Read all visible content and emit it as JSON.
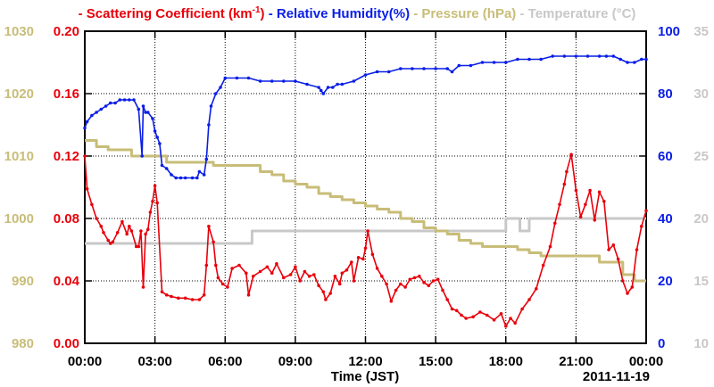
{
  "chart_data": {
    "type": "line",
    "title": "",
    "date_label": "2011-11-19",
    "xlabel": "Time (JST)",
    "x_ticks": [
      "00:00",
      "03:00",
      "06:00",
      "09:00",
      "12:00",
      "15:00",
      "18:00",
      "21:00",
      "00:00"
    ],
    "xlim_hours": [
      0,
      24
    ],
    "legend": [
      {
        "name": "Scattering Coefficient (km",
        "sup": "-1",
        "tail": ")",
        "color": "#e8000b"
      },
      {
        "name": "Relative Humidity(%)",
        "color": "#0a1ee6"
      },
      {
        "name": "Pressure (hPa)",
        "color": "#c8bd78"
      },
      {
        "name": "Temperature (°C)",
        "color": "#c8c8c8"
      }
    ],
    "axes": {
      "scattering": {
        "side": "left-inner",
        "range": [
          0,
          0.2
        ],
        "ticks": [
          "0.00",
          "0.04",
          "0.08",
          "0.12",
          "0.16",
          "0.20"
        ],
        "color": "#e8000b"
      },
      "pressure": {
        "side": "left-outer",
        "range": [
          980,
          1030
        ],
        "ticks": [
          "980",
          "990",
          "1000",
          "1010",
          "1020",
          "1030"
        ],
        "color": "#c8bd78"
      },
      "humidity": {
        "side": "right-inner",
        "range": [
          0,
          100
        ],
        "ticks": [
          "0",
          "20",
          "40",
          "60",
          "80",
          "100"
        ],
        "color": "#0a1ee6"
      },
      "temperature": {
        "side": "right-outer",
        "range": [
          10,
          35
        ],
        "ticks": [
          "10",
          "15",
          "20",
          "25",
          "30",
          "35"
        ],
        "color": "#c8c8c8"
      }
    },
    "grid": true,
    "series": [
      {
        "name": "Scattering Coefficient",
        "axis": "scattering",
        "x": [
          0,
          0.1,
          0.3,
          0.5,
          0.7,
          0.8,
          1.0,
          1.1,
          1.2,
          1.4,
          1.6,
          1.8,
          1.9,
          2.0,
          2.2,
          2.3,
          2.4,
          2.5,
          2.6,
          2.7,
          2.8,
          2.9,
          3.0,
          3.1,
          3.3,
          3.5,
          3.7,
          4.0,
          4.3,
          4.6,
          4.9,
          5.1,
          5.2,
          5.3,
          5.5,
          5.6,
          5.7,
          5.9,
          6.1,
          6.3,
          6.6,
          6.9,
          7.0,
          7.2,
          7.5,
          7.8,
          8.0,
          8.2,
          8.5,
          8.8,
          9.0,
          9.2,
          9.4,
          9.6,
          9.8,
          10.0,
          10.2,
          10.3,
          10.5,
          10.7,
          10.9,
          11.0,
          11.2,
          11.4,
          11.5,
          11.7,
          11.9,
          12.0,
          12.1,
          12.3,
          12.5,
          12.7,
          12.9,
          13.1,
          13.3,
          13.5,
          13.7,
          13.9,
          14.1,
          14.3,
          14.5,
          14.7,
          14.9,
          15.1,
          15.3,
          15.5,
          15.7,
          15.9,
          16.1,
          16.3,
          16.6,
          16.9,
          17.2,
          17.5,
          17.8,
          18.0,
          18.2,
          18.4,
          18.7,
          19.0,
          19.3,
          19.6,
          19.9,
          20.1,
          20.3,
          20.5,
          20.6,
          20.8,
          21.0,
          21.2,
          21.4,
          21.6,
          21.8,
          22.0,
          22.2,
          22.4,
          22.6,
          22.8,
          23.0,
          23.2,
          23.4,
          23.6,
          23.8,
          24.0
        ],
        "y": [
          0.12,
          0.099,
          0.089,
          0.08,
          0.075,
          0.071,
          0.066,
          0.064,
          0.065,
          0.071,
          0.078,
          0.07,
          0.075,
          0.072,
          0.062,
          0.062,
          0.072,
          0.036,
          0.07,
          0.073,
          0.084,
          0.091,
          0.101,
          0.09,
          0.033,
          0.031,
          0.03,
          0.029,
          0.029,
          0.028,
          0.028,
          0.031,
          0.05,
          0.075,
          0.065,
          0.05,
          0.042,
          0.038,
          0.036,
          0.048,
          0.05,
          0.045,
          0.031,
          0.043,
          0.046,
          0.049,
          0.045,
          0.051,
          0.042,
          0.044,
          0.049,
          0.04,
          0.046,
          0.043,
          0.044,
          0.037,
          0.033,
          0.028,
          0.032,
          0.043,
          0.038,
          0.045,
          0.047,
          0.052,
          0.04,
          0.055,
          0.054,
          0.061,
          0.072,
          0.057,
          0.048,
          0.043,
          0.038,
          0.027,
          0.034,
          0.038,
          0.036,
          0.041,
          0.042,
          0.043,
          0.039,
          0.037,
          0.04,
          0.041,
          0.034,
          0.028,
          0.022,
          0.021,
          0.018,
          0.016,
          0.017,
          0.02,
          0.018,
          0.015,
          0.019,
          0.011,
          0.016,
          0.013,
          0.022,
          0.028,
          0.035,
          0.05,
          0.062,
          0.077,
          0.089,
          0.102,
          0.11,
          0.121,
          0.098,
          0.081,
          0.089,
          0.098,
          0.079,
          0.097,
          0.091,
          0.06,
          0.063,
          0.054,
          0.04,
          0.032,
          0.036,
          0.06,
          0.075,
          0.085
        ]
      },
      {
        "name": "Relative Humidity",
        "axis": "humidity",
        "x": [
          0,
          0.1,
          0.3,
          0.5,
          0.7,
          0.9,
          1.1,
          1.3,
          1.5,
          1.7,
          1.9,
          2.1,
          2.3,
          2.45,
          2.5,
          2.6,
          2.7,
          2.9,
          3.0,
          3.1,
          3.2,
          3.3,
          3.5,
          3.7,
          3.9,
          4.1,
          4.3,
          4.6,
          4.8,
          4.9,
          5.1,
          5.2,
          5.3,
          5.4,
          5.6,
          5.8,
          6.0,
          6.5,
          7.0,
          7.5,
          8.0,
          8.5,
          9.0,
          9.5,
          10.0,
          10.1,
          10.2,
          10.4,
          10.6,
          10.8,
          11.0,
          11.5,
          12.0,
          12.5,
          13.0,
          13.5,
          14.0,
          14.5,
          15.0,
          15.5,
          15.7,
          16.0,
          16.5,
          17.0,
          17.5,
          18.0,
          18.5,
          19.0,
          19.5,
          20.0,
          20.5,
          21.0,
          21.5,
          22.0,
          22.3,
          22.6,
          22.9,
          23.2,
          23.5,
          23.8,
          24.0
        ],
        "y": [
          69,
          71,
          73,
          74,
          75,
          76,
          77,
          77,
          78,
          78,
          78,
          78,
          75,
          60,
          76,
          74,
          74,
          72,
          68,
          66,
          64,
          57,
          56,
          54,
          53,
          53,
          53,
          53,
          53,
          55,
          54,
          59,
          70,
          76,
          80,
          82,
          85,
          85,
          85,
          84,
          84,
          84,
          84,
          83,
          82,
          81,
          80,
          82,
          82,
          83,
          83,
          84,
          86,
          87,
          87,
          88,
          88,
          88,
          88,
          88,
          87,
          89,
          89,
          90,
          90,
          90,
          91,
          91,
          91,
          92,
          92,
          92,
          92,
          92,
          92,
          92,
          91,
          90,
          90,
          91,
          91
        ]
      },
      {
        "name": "Pressure",
        "axis": "pressure",
        "x": [
          0,
          0.5,
          1.0,
          2.0,
          3.0,
          3.5,
          4.5,
          5.0,
          5.5,
          6.0,
          7.0,
          7.5,
          8.0,
          8.5,
          9.0,
          9.5,
          10.0,
          10.5,
          11.0,
          11.5,
          12.0,
          12.5,
          13.0,
          13.5,
          14.0,
          14.5,
          15.0,
          15.5,
          16.0,
          16.5,
          17.0,
          17.5,
          18.0,
          18.5,
          19.0,
          19.5,
          20.0,
          20.5,
          21.0,
          21.5,
          22.0,
          22.5,
          23.0,
          23.5,
          24.0
        ],
        "y": [
          1012.5,
          1011.5,
          1011,
          1010,
          1010,
          1009,
          1009,
          1009,
          1008.5,
          1008.5,
          1008.5,
          1007.5,
          1007,
          1006,
          1005.5,
          1005,
          1004,
          1003.5,
          1003,
          1002.5,
          1002,
          1001.5,
          1001,
          1000,
          999.5,
          998.5,
          998,
          997.5,
          996.5,
          996,
          995.5,
          995.5,
          995.5,
          995,
          994.5,
          994,
          994,
          994,
          994,
          994,
          993,
          993,
          991,
          990,
          990
        ]
      },
      {
        "name": "Temperature",
        "axis": "temperature",
        "x": [
          0,
          1,
          2,
          3,
          4,
          5,
          6,
          7,
          7.15,
          8,
          9,
          10,
          11,
          12,
          13,
          14,
          15,
          16,
          17,
          17.8,
          18,
          18.5,
          18.6,
          18.8,
          19,
          19.3,
          20,
          21,
          22,
          23,
          24
        ],
        "y": [
          18,
          18,
          18,
          18,
          18,
          18,
          18,
          18,
          19,
          19,
          19,
          19,
          19,
          19,
          19,
          19,
          19,
          19,
          19,
          19,
          20,
          20,
          19,
          19,
          20,
          20,
          20,
          20,
          20,
          20,
          20
        ]
      }
    ]
  }
}
